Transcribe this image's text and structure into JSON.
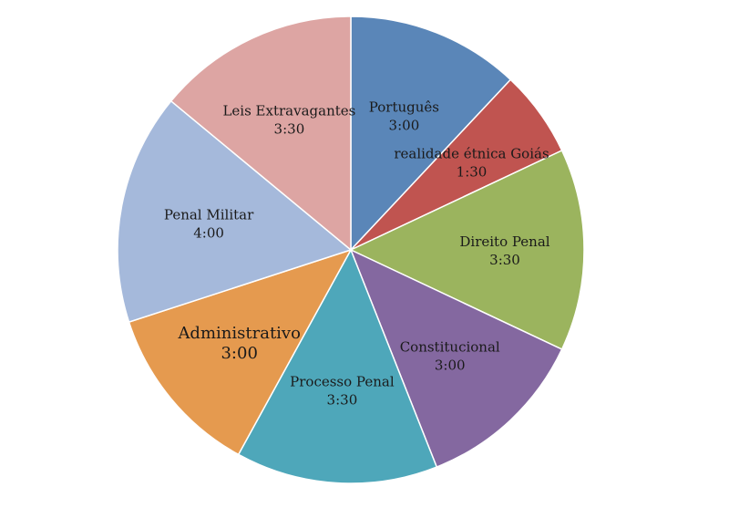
{
  "chart_data": {
    "type": "pie",
    "title": "",
    "slices": [
      {
        "label": "Português",
        "display": "3:00",
        "value": 3.0,
        "color": "#5A86B8"
      },
      {
        "label": "realidade étnica Goiás",
        "display": "1:30",
        "value": 1.5,
        "color": "#C05450"
      },
      {
        "label": "Direito Penal",
        "display": "3:30",
        "value": 3.5,
        "color": "#9BB45E"
      },
      {
        "label": "Constitucional",
        "display": "3:00",
        "value": 3.0,
        "color": "#8468A0"
      },
      {
        "label": "Processo Penal",
        "display": "3:30",
        "value": 3.5,
        "color": "#4EA7BA"
      },
      {
        "label": "Administrativo",
        "display": "3:00",
        "value": 3.0,
        "color": "#E59A4F"
      },
      {
        "label": "Penal Militar",
        "display": "4:00",
        "value": 4.0,
        "color": "#A5B9DB"
      },
      {
        "label": "Leis Extravagantes",
        "display": "3:30",
        "value": 3.5,
        "color": "#DDA5A3"
      }
    ],
    "legend": "none",
    "start_angle": "12 o'clock",
    "direction": "clockwise"
  }
}
